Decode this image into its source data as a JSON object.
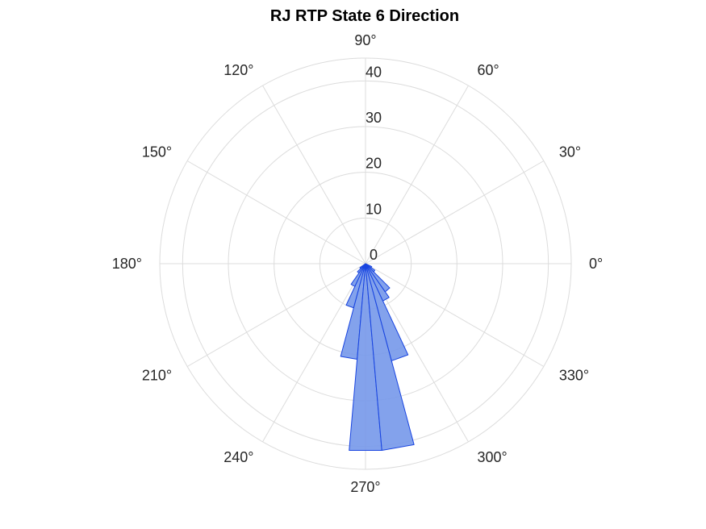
{
  "chart_data": {
    "type": "polar-histogram",
    "title": "RJ  RTP State 6 Direction",
    "angle_unit": "degrees",
    "theta_zero_location": "east",
    "theta_direction": "counterclockwise",
    "theta_ticks": [
      0,
      30,
      60,
      90,
      120,
      150,
      180,
      210,
      240,
      270,
      300,
      330
    ],
    "theta_tick_labels": [
      "0°",
      "30°",
      "60°",
      "90°",
      "120°",
      "150°",
      "180°",
      "210°",
      "240°",
      "270°",
      "300°",
      "330°"
    ],
    "r_ticks": [
      0,
      10,
      20,
      30,
      40
    ],
    "r_tick_labels": [
      "0",
      "10",
      "20",
      "30",
      "40"
    ],
    "r_tick_label_angle": 90,
    "rlim": [
      0,
      45
    ],
    "grid": true,
    "bins": [
      {
        "theta_start": 215,
        "theta_end": 225,
        "value": 1.5
      },
      {
        "theta_start": 225,
        "theta_end": 235,
        "value": 2.5
      },
      {
        "theta_start": 235,
        "theta_end": 245,
        "value": 5.5
      },
      {
        "theta_start": 245,
        "theta_end": 255,
        "value": 10
      },
      {
        "theta_start": 255,
        "theta_end": 265,
        "value": 21
      },
      {
        "theta_start": 265,
        "theta_end": 275,
        "value": 41
      },
      {
        "theta_start": 275,
        "theta_end": 285,
        "value": 41
      },
      {
        "theta_start": 285,
        "theta_end": 295,
        "value": 22
      },
      {
        "theta_start": 295,
        "theta_end": 305,
        "value": 9
      },
      {
        "theta_start": 305,
        "theta_end": 315,
        "value": 7.5
      },
      {
        "theta_start": 315,
        "theta_end": 325,
        "value": 2.5
      },
      {
        "theta_start": 325,
        "theta_end": 335,
        "value": 1.5
      }
    ],
    "colors": {
      "bar_fill": "#7698ea",
      "bar_edge": "#1844e0",
      "grid": "#dcdcdc",
      "text": "#262626"
    }
  }
}
